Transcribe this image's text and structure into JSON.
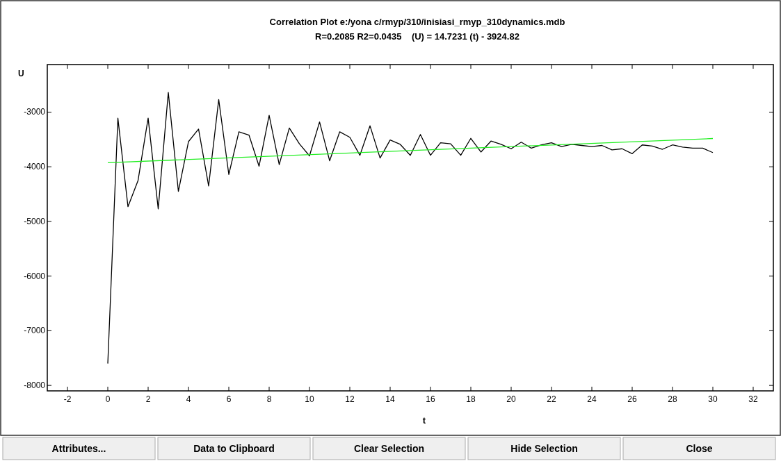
{
  "chart_data": {
    "type": "line",
    "title": "Correlation Plot e:/yona c/rmyp/310/inisiasi_rmyp_310dynamics.mdb",
    "subtitle": "R=0.2085 R2=0.0435    (U) = 14.7231 (t) - 3924.82",
    "xlabel": "t",
    "ylabel": "U",
    "xlim": [
      -3,
      33
    ],
    "xticks": [
      -2,
      0,
      2,
      4,
      6,
      8,
      10,
      12,
      14,
      16,
      18,
      20,
      22,
      24,
      26,
      28,
      30,
      32
    ],
    "ylim": [
      -8100,
      -2130
    ],
    "yticks": [
      -8000,
      -7000,
      -6000,
      -5000,
      -4000,
      -3000
    ],
    "grid": false,
    "marker": "none",
    "line_style": "solid",
    "series": [
      {
        "color": "#000000",
        "x": [
          0,
          0.5,
          1,
          1.5,
          2,
          2.5,
          3,
          3.5,
          4,
          4.5,
          5,
          5.5,
          6,
          6.5,
          7,
          7.5,
          8,
          8.5,
          9,
          9.5,
          10,
          10.5,
          11,
          11.5,
          12,
          12.5,
          13,
          13.5,
          14,
          14.5,
          15,
          15.5,
          16,
          16.5,
          17,
          17.5,
          18,
          18.5,
          19,
          19.5,
          20,
          20.5,
          21,
          21.5,
          22,
          22.5,
          23,
          23.5,
          24,
          24.5,
          25,
          25.5,
          26,
          26.5,
          27,
          27.5,
          28,
          28.5,
          29,
          29.5,
          30
        ],
        "values": [
          -7600,
          -3110,
          -4730,
          -4250,
          -3110,
          -4770,
          -2640,
          -4450,
          -3540,
          -3310,
          -4350,
          -2770,
          -4140,
          -3360,
          -3420,
          -3990,
          -3060,
          -3960,
          -3290,
          -3580,
          -3800,
          -3180,
          -3890,
          -3360,
          -3460,
          -3790,
          -3250,
          -3840,
          -3510,
          -3590,
          -3790,
          -3410,
          -3790,
          -3560,
          -3580,
          -3790,
          -3480,
          -3730,
          -3530,
          -3590,
          -3670,
          -3550,
          -3660,
          -3600,
          -3560,
          -3630,
          -3590,
          -3610,
          -3630,
          -3610,
          -3690,
          -3670,
          -3760,
          -3600,
          -3620,
          -3680,
          -3600,
          -3640,
          -3660,
          -3660,
          -3740
        ]
      },
      {
        "color": "#22ee22",
        "x": [
          0,
          30
        ],
        "values": [
          -3925,
          -3483
        ]
      }
    ],
    "annotations": [
      "Attributes...",
      "Data to Clipboard",
      "Clear Selection",
      "Hide Selection",
      "Close"
    ]
  }
}
